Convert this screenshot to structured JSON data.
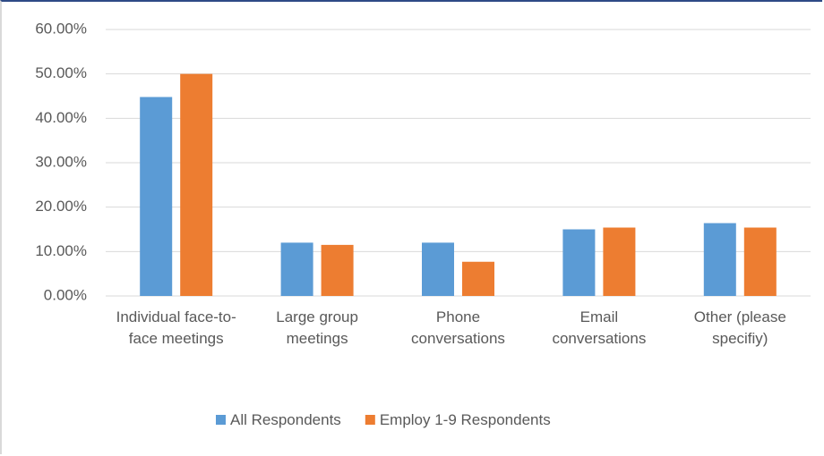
{
  "chart_data": {
    "type": "bar",
    "categories": [
      "Individual face-to-face meetings",
      "Large group meetings",
      "Phone conversations",
      "Email conversations",
      "Other (please specifiy)"
    ],
    "series": [
      {
        "name": "All Respondents",
        "color": "#5b9bd5",
        "values": [
          44.8,
          12,
          12,
          15,
          16.4
        ]
      },
      {
        "name": "Employ 1-9 Respondents",
        "color": "#ed7d31",
        "values": [
          50,
          11.5,
          7.7,
          15.4,
          15.4
        ]
      }
    ],
    "ylim": [
      0,
      60
    ],
    "yticks": [
      {
        "value": 0,
        "label": "0.00%"
      },
      {
        "value": 10,
        "label": "10.00%"
      },
      {
        "value": 20,
        "label": "20.00%"
      },
      {
        "value": 30,
        "label": "30.00%"
      },
      {
        "value": 40,
        "label": "40.00%"
      },
      {
        "value": 50,
        "label": "50.00%"
      },
      {
        "value": 60,
        "label": "60.00%"
      }
    ],
    "grid": true,
    "legend": "bottom"
  }
}
